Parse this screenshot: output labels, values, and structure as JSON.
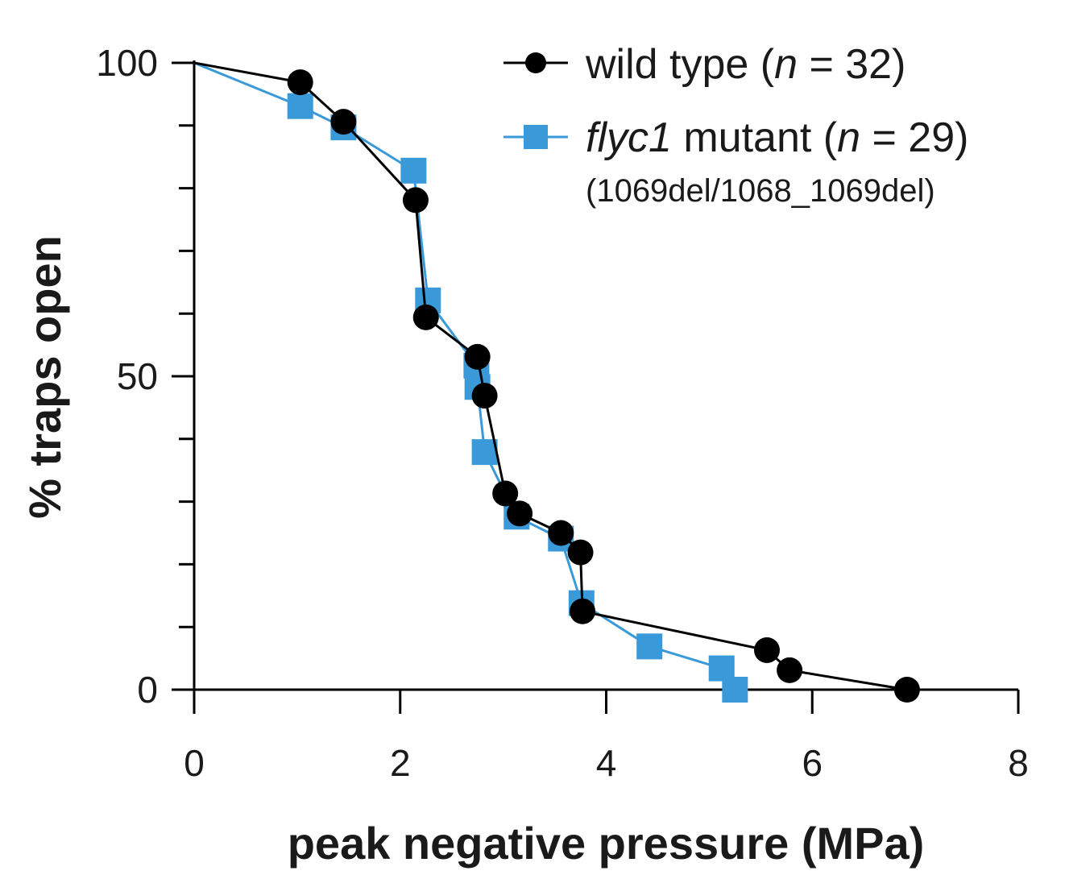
{
  "chart_data": {
    "type": "line",
    "xlabel": "peak negative pressure (MPa)",
    "ylabel": "% traps open",
    "xlim": [
      0,
      8
    ],
    "ylim": [
      0,
      100
    ],
    "xticks": [
      0,
      2,
      4,
      6,
      8
    ],
    "xtick_labels": [
      "0",
      "2",
      "4",
      "6",
      "8"
    ],
    "yticks_major": [
      0,
      50,
      100
    ],
    "ytick_labels": [
      "0",
      "50",
      "100"
    ],
    "yticks_minor": [
      10,
      20,
      30,
      40,
      60,
      70,
      80,
      90
    ],
    "grid": false,
    "legend_position": "top-right",
    "series": [
      {
        "key": "wild-type",
        "name": "wild type (n = 32)",
        "label_parts": [
          "wild type (",
          "n",
          " = 32)"
        ],
        "marker": "circle",
        "color": "#000000",
        "x": [
          0,
          1.03,
          1.45,
          2.15,
          2.25,
          2.75,
          2.82,
          3.02,
          3.16,
          3.56,
          3.75,
          3.77,
          5.56,
          5.78,
          6.92
        ],
        "y": [
          100,
          96.9,
          90.6,
          78.1,
          59.4,
          53.1,
          46.9,
          31.3,
          28.1,
          25.0,
          21.9,
          12.5,
          6.3,
          3.1,
          0
        ]
      },
      {
        "key": "flyc1-mutant",
        "name": "flyc1 mutant (n = 29)",
        "label_parts": [
          "flyc1",
          " mutant (",
          "n",
          " = 29)"
        ],
        "label_sub": "(1069del/1068_1069del)",
        "marker": "square",
        "color": "#3a9ad9",
        "x": [
          0,
          1.03,
          1.45,
          2.13,
          2.27,
          2.74,
          2.75,
          2.82,
          3.13,
          3.56,
          3.76,
          4.42,
          5.12,
          5.25
        ],
        "y": [
          100,
          93.1,
          89.7,
          82.8,
          62.1,
          51.7,
          48.3,
          37.9,
          27.6,
          24.1,
          13.8,
          6.9,
          3.4,
          0
        ]
      }
    ]
  }
}
